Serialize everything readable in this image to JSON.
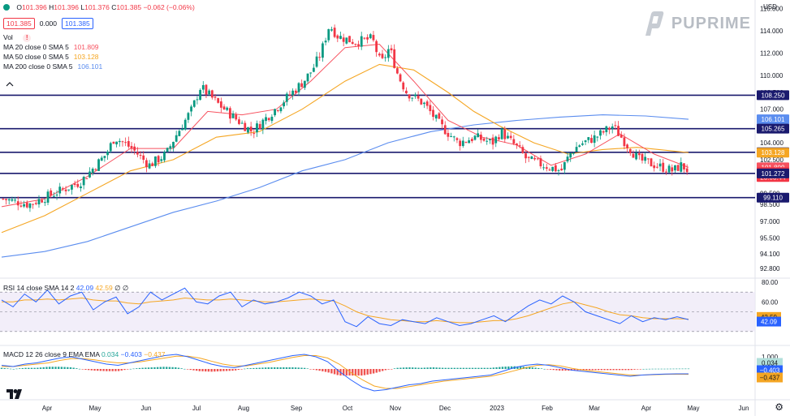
{
  "header": {
    "ohlc": {
      "o_label": "O",
      "o": "101.396",
      "h_label": "H",
      "h": "101.396",
      "l_label": "L",
      "l": "101.376",
      "c_label": "C",
      "c": "101.385",
      "chg": "−0.062 (−0.06%)"
    },
    "sell_price": "101.385",
    "spread": "0.000",
    "buy_price": "101.385",
    "vol_label": "Vol",
    "ma20_label": "MA 20 close 0 SMA 5",
    "ma20_val": "101.809",
    "ma50_label": "MA 50 close 0 SMA 5",
    "ma50_val": "103.128",
    "ma200_label": "MA 200 close 0 SMA 5",
    "ma200_val": "106.101",
    "currency": "USD"
  },
  "logo": {
    "text": "PUPRIME"
  },
  "rsi_legend": {
    "label": "RSI 14 close SMA 14 2",
    "v1": "42.09",
    "v2": "42.59",
    "v3": "∅",
    "v4": "∅"
  },
  "macd_legend": {
    "label": "MACD 12 26 close 9 EMA EMA",
    "v1": "0.034",
    "v2": "−0.403",
    "v3": "−0.437"
  },
  "colors": {
    "up": "#089981",
    "down": "#f23645",
    "ma20": "#f7525f",
    "ma50": "#f5a623",
    "ma200": "#5b8def",
    "level": "#1a1a6e",
    "rsi": "#2962ff",
    "rsi_ma": "#f5a623",
    "macd": "#2962ff",
    "signal": "#f5a623"
  },
  "chart_data": [
    {
      "type": "candlestick",
      "title": "",
      "y_axis_ticks": [
        "116.000",
        "114.000",
        "112.000",
        "110.000",
        "108.500",
        "107.000",
        "104.000",
        "102.500",
        "101.000",
        "99.500",
        "98.500",
        "97.000",
        "95.500",
        "94.100",
        "92.800"
      ],
      "x_axis_ticks": [
        "Apr",
        "May",
        "Jun",
        "Jul",
        "Aug",
        "Sep",
        "Oct",
        "Nov",
        "Dec",
        "2023",
        "Feb",
        "Mar",
        "Apr",
        "May",
        "Jun"
      ],
      "ylim": [
        92,
        116.6
      ],
      "horizontal_levels": [
        108.25,
        105.265,
        103.157,
        101.272,
        99.11
      ],
      "price_labels": [
        {
          "text": "108.250",
          "value": 108.25,
          "color": "#1a1a6e"
        },
        {
          "text": "106.101",
          "value": 106.101,
          "color": "#5b8def"
        },
        {
          "text": "105.265",
          "value": 105.265,
          "color": "#1a1a6e"
        },
        {
          "text": "103.157",
          "value": 103.157,
          "color": "#1a1a6e"
        },
        {
          "text": "103.128",
          "value": 103.128,
          "color": "#f5a623"
        },
        {
          "text": "101.809",
          "value": 101.809,
          "color": "#f7525f"
        },
        {
          "text": "101.385",
          "value": 101.385,
          "color": "#f23645"
        },
        {
          "text": "23:03:44",
          "value": 100.95,
          "color": "#f23645"
        },
        {
          "text": "101.272",
          "value": 101.272,
          "color": "#1a1a6e"
        },
        {
          "text": "99.110",
          "value": 99.11,
          "color": "#1a1a6e"
        }
      ],
      "close_path": [
        [
          0,
          99.0
        ],
        [
          3,
          98.5
        ],
        [
          6,
          99.5
        ],
        [
          9,
          100.5
        ],
        [
          12,
          103.0
        ],
        [
          13,
          104.5
        ],
        [
          15,
          103.5
        ],
        [
          17,
          102.0
        ],
        [
          19,
          103.0
        ],
        [
          20,
          104.5
        ],
        [
          22,
          107.0
        ],
        [
          23,
          109.0
        ],
        [
          25,
          107.5
        ],
        [
          27,
          106.2
        ],
        [
          29,
          105.0
        ],
        [
          31,
          106.5
        ],
        [
          33,
          108.0
        ],
        [
          35,
          109.5
        ],
        [
          36,
          110.5
        ],
        [
          37,
          112.0
        ],
        [
          38,
          114.5
        ],
        [
          39,
          113.5
        ],
        [
          41,
          113.0
        ],
        [
          43,
          113.3
        ],
        [
          44,
          111.0
        ],
        [
          45,
          112.5
        ],
        [
          46,
          110.0
        ],
        [
          47,
          108.5
        ],
        [
          49,
          107.5
        ],
        [
          50,
          106.5
        ],
        [
          51,
          105.5
        ],
        [
          53,
          104.0
        ],
        [
          55,
          104.5
        ],
        [
          57,
          104.0
        ],
        [
          58,
          105.0
        ],
        [
          59,
          104.2
        ],
        [
          60,
          103.5
        ],
        [
          61,
          102.5
        ],
        [
          63,
          102.0
        ],
        [
          65,
          101.5
        ],
        [
          66,
          103.0
        ],
        [
          67,
          103.8
        ],
        [
          69,
          104.5
        ],
        [
          70,
          105.0
        ],
        [
          71,
          105.5
        ],
        [
          72,
          104.5
        ],
        [
          73,
          103.5
        ],
        [
          74,
          102.5
        ],
        [
          76,
          102.0
        ],
        [
          78,
          101.5
        ],
        [
          79,
          102.0
        ],
        [
          80,
          101.385
        ]
      ],
      "ma20": [
        [
          0,
          98.3
        ],
        [
          5,
          99.0
        ],
        [
          10,
          101.0
        ],
        [
          15,
          103.5
        ],
        [
          20,
          103.5
        ],
        [
          24,
          106.8
        ],
        [
          28,
          106.5
        ],
        [
          32,
          107.0
        ],
        [
          36,
          109.5
        ],
        [
          40,
          112.5
        ],
        [
          44,
          112.8
        ],
        [
          48,
          109.5
        ],
        [
          52,
          106.0
        ],
        [
          56,
          104.5
        ],
        [
          60,
          103.8
        ],
        [
          64,
          102.0
        ],
        [
          68,
          103.0
        ],
        [
          72,
          104.8
        ],
        [
          76,
          103.0
        ],
        [
          80,
          101.809
        ]
      ],
      "ma50": [
        [
          0,
          96.0
        ],
        [
          5,
          97.5
        ],
        [
          10,
          99.5
        ],
        [
          15,
          101.5
        ],
        [
          20,
          102.5
        ],
        [
          25,
          104.5
        ],
        [
          30,
          105.0
        ],
        [
          35,
          107.0
        ],
        [
          40,
          109.5
        ],
        [
          44,
          111.0
        ],
        [
          48,
          110.5
        ],
        [
          52,
          108.5
        ],
        [
          55,
          106.8
        ],
        [
          58,
          105.5
        ],
        [
          62,
          104.0
        ],
        [
          66,
          103.0
        ],
        [
          70,
          103.4
        ],
        [
          74,
          103.6
        ],
        [
          80,
          103.128
        ]
      ],
      "ma200": [
        [
          0,
          93.8
        ],
        [
          5,
          94.3
        ],
        [
          10,
          95.2
        ],
        [
          15,
          96.5
        ],
        [
          20,
          97.8
        ],
        [
          25,
          98.8
        ],
        [
          30,
          100.0
        ],
        [
          35,
          101.5
        ],
        [
          40,
          102.5
        ],
        [
          45,
          104.0
        ],
        [
          50,
          105.0
        ],
        [
          55,
          105.6
        ],
        [
          60,
          106.0
        ],
        [
          65,
          106.3
        ],
        [
          70,
          106.5
        ],
        [
          75,
          106.4
        ],
        [
          80,
          106.101
        ]
      ]
    },
    {
      "type": "line",
      "title": "RSI 14",
      "y_axis_ticks": [
        "80.00",
        "60.00"
      ],
      "ylim": [
        20,
        80
      ],
      "band": [
        30,
        70
      ],
      "current": {
        "rsi": "42.09",
        "rsi_ma": "42.59"
      },
      "series": [
        {
          "name": "RSI",
          "values": [
            62,
            55,
            68,
            60,
            72,
            58,
            66,
            70,
            52,
            60,
            65,
            48,
            55,
            70,
            62,
            68,
            74,
            60,
            58,
            66,
            70,
            55,
            62,
            58,
            60,
            64,
            70,
            66,
            58,
            62,
            40,
            35,
            45,
            38,
            36,
            42,
            40,
            38,
            44,
            40,
            36,
            38,
            42,
            46,
            40,
            48,
            56,
            62,
            58,
            66,
            60,
            50,
            46,
            42,
            38,
            46,
            40,
            44,
            42,
            45,
            42.09
          ]
        },
        {
          "name": "RSI MA",
          "values": [
            60,
            60,
            62,
            62,
            63,
            62,
            63,
            64,
            62,
            61,
            61,
            59,
            58,
            60,
            61,
            62,
            64,
            63,
            62,
            62,
            63,
            62,
            61,
            60,
            60,
            61,
            62,
            63,
            62,
            61,
            56,
            50,
            46,
            44,
            42,
            41,
            40,
            40,
            41,
            40,
            39,
            39,
            40,
            41,
            41,
            43,
            46,
            50,
            54,
            58,
            60,
            57,
            54,
            50,
            47,
            46,
            44,
            43,
            43,
            43,
            42.59
          ]
        }
      ]
    },
    {
      "type": "bar",
      "title": "MACD 12 26",
      "y_axis_ticks": [
        "1.000",
        "0.034",
        "−0.403",
        "−0.437"
      ],
      "ylim": [
        -2.2,
        1.6
      ],
      "current": {
        "hist": "0.034",
        "macd": "−0.403",
        "signal": "−0.437"
      },
      "series": [
        {
          "name": "MACD",
          "values": [
            0.3,
            0.2,
            0.4,
            0.5,
            0.7,
            0.9,
            1.0,
            0.8,
            0.6,
            0.4,
            0.3,
            0.5,
            0.7,
            0.9,
            1.1,
            1.2,
            1.0,
            0.7,
            0.4,
            0.2,
            0.1,
            0.3,
            0.5,
            0.7,
            0.9,
            1.1,
            1.2,
            1.0,
            0.6,
            -0.2,
            -0.9,
            -1.5,
            -1.8,
            -1.7,
            -1.5,
            -1.3,
            -1.2,
            -1.0,
            -0.9,
            -0.8,
            -0.7,
            -0.6,
            -0.5,
            -0.2,
            0.1,
            0.3,
            0.4,
            0.3,
            0.1,
            -0.1,
            -0.2,
            -0.3,
            -0.4,
            -0.5,
            -0.6,
            -0.5,
            -0.45,
            -0.42,
            -0.4,
            -0.403
          ]
        },
        {
          "name": "Signal",
          "values": [
            0.2,
            0.2,
            0.3,
            0.4,
            0.5,
            0.7,
            0.85,
            0.85,
            0.75,
            0.6,
            0.5,
            0.5,
            0.6,
            0.75,
            0.9,
            1.05,
            1.05,
            0.9,
            0.65,
            0.4,
            0.25,
            0.25,
            0.4,
            0.55,
            0.75,
            0.95,
            1.1,
            1.1,
            0.9,
            0.4,
            -0.3,
            -0.9,
            -1.4,
            -1.6,
            -1.6,
            -1.45,
            -1.3,
            -1.15,
            -1.0,
            -0.9,
            -0.8,
            -0.7,
            -0.6,
            -0.4,
            -0.15,
            0.1,
            0.3,
            0.35,
            0.25,
            0.05,
            -0.1,
            -0.2,
            -0.3,
            -0.4,
            -0.5,
            -0.5,
            -0.47,
            -0.44,
            -0.43,
            -0.437
          ]
        }
      ]
    }
  ]
}
